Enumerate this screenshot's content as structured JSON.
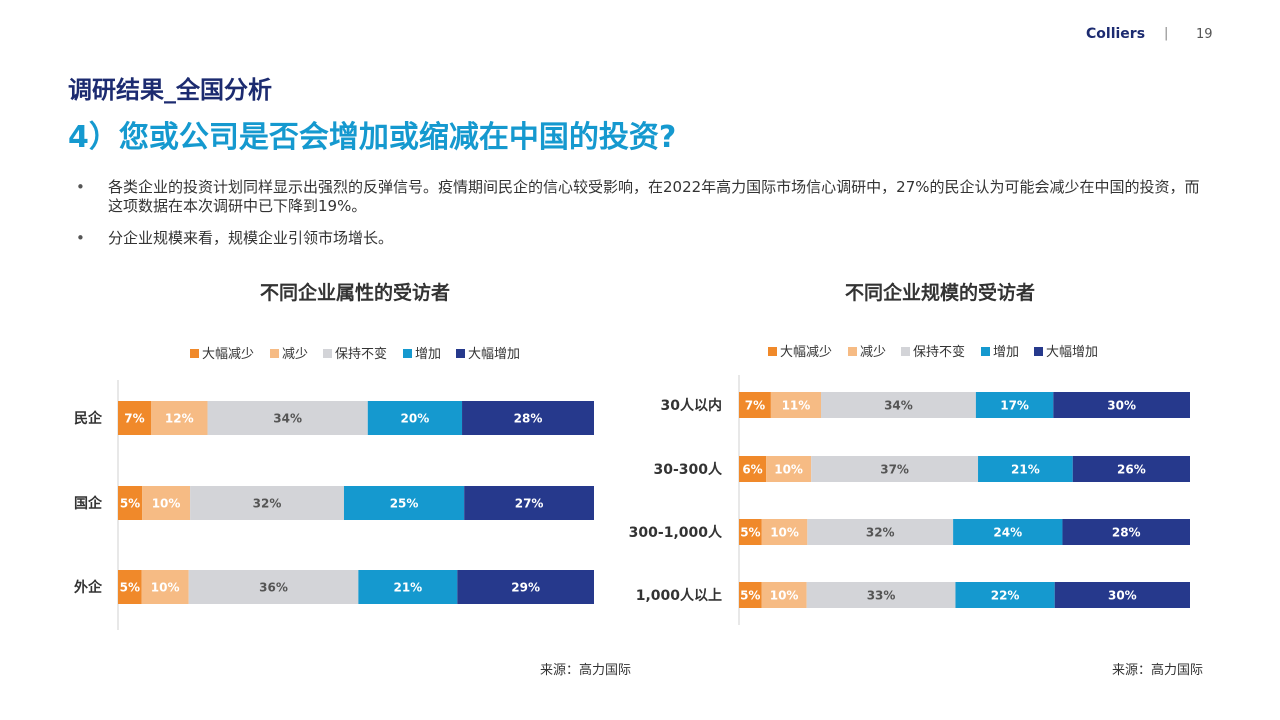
{
  "header": {
    "brand": "Colliers",
    "separator": "|",
    "page_number": "19"
  },
  "section_title": "调研结果_全国分析",
  "main_title": "4）您或公司是否会增加或缩减在中国的投资?",
  "bullets": [
    "各类企业的投资计划同样显示出强烈的反弹信号。疫情期间民企的信心较受影响，在2022年高力国际市场信心调研中，27%的民企认为可能会减少在中国的投资，而这项数据在本次调研中已下降到19%。",
    "分企业规模来看，规模企业引领市场增长。"
  ],
  "colors": {
    "大幅减少": "#f0892a",
    "减少": "#f6bb84",
    "保持不变": "#d3d4d8",
    "增加": "#1599cf",
    "大幅增加": "#26398c"
  },
  "chart_data": [
    {
      "type": "bar",
      "orientation": "horizontal",
      "stacked": true,
      "title": "不同企业属性的受访者",
      "legend_position": "top",
      "categories": [
        "民企",
        "国企",
        "外企"
      ],
      "series": [
        {
          "name": "大幅减少",
          "values": [
            7,
            5,
            5
          ]
        },
        {
          "name": "减少",
          "values": [
            12,
            10,
            10
          ]
        },
        {
          "name": "保持不变",
          "values": [
            34,
            32,
            36
          ]
        },
        {
          "name": "增加",
          "values": [
            20,
            25,
            21
          ]
        },
        {
          "name": "大幅增加",
          "values": [
            28,
            27,
            29
          ]
        }
      ],
      "source": "来源：高力国际"
    },
    {
      "type": "bar",
      "orientation": "horizontal",
      "stacked": true,
      "title": "不同企业规模的受访者",
      "legend_position": "top",
      "categories": [
        "30人以内",
        "30-300人",
        "300-1,000人",
        "1,000人以上"
      ],
      "series": [
        {
          "name": "大幅减少",
          "values": [
            7,
            6,
            5,
            5
          ]
        },
        {
          "name": "减少",
          "values": [
            11,
            10,
            10,
            10
          ]
        },
        {
          "name": "保持不变",
          "values": [
            34,
            37,
            32,
            33
          ]
        },
        {
          "name": "增加",
          "values": [
            17,
            21,
            24,
            22
          ]
        },
        {
          "name": "大幅增加",
          "values": [
            30,
            26,
            28,
            30
          ]
        }
      ],
      "source": "来源：高力国际"
    }
  ]
}
